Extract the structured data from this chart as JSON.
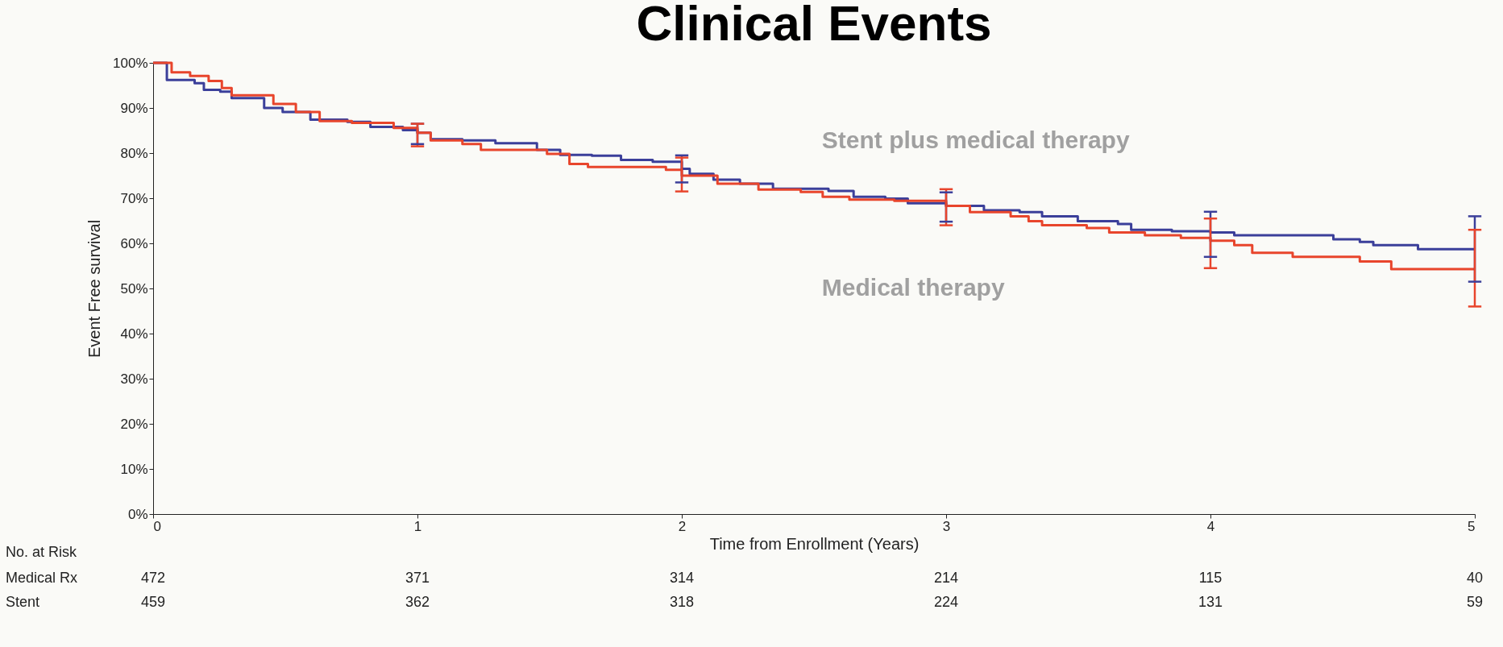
{
  "chart_data": {
    "type": "step",
    "title": "Clinical Events",
    "xlabel": "Time from Enrollment (Years)",
    "ylabel": "Event Free survival",
    "xlim": [
      0,
      5
    ],
    "xticks": [
      0,
      1,
      2,
      3,
      4,
      5
    ],
    "ylim": [
      0,
      100
    ],
    "yticks": [
      {
        "value": 0,
        "label": "0%"
      },
      {
        "value": 10,
        "label": "10%"
      },
      {
        "value": 20,
        "label": "20%"
      },
      {
        "value": 30,
        "label": "30%"
      },
      {
        "value": 40,
        "label": "40%"
      },
      {
        "value": 50,
        "label": "50%"
      },
      {
        "value": 60,
        "label": "60%"
      },
      {
        "value": 70,
        "label": "70%"
      },
      {
        "value": 80,
        "label": "80%"
      },
      {
        "value": 90,
        "label": "90%"
      },
      {
        "value": 100,
        "label": "100%"
      }
    ],
    "grid": false,
    "marker": "none",
    "series": [
      {
        "name": "Stent plus medical therapy",
        "color": "#3b3f9a",
        "x": [
          0,
          0.04,
          0.052,
          0.157,
          0.192,
          0.254,
          0.297,
          0.42,
          0.49,
          0.595,
          0.735,
          0.822,
          0.945,
          1.0,
          1.05,
          1.17,
          1.295,
          1.452,
          1.54,
          1.66,
          1.77,
          1.89,
          2.0,
          2.03,
          2.12,
          2.22,
          2.345,
          2.555,
          2.65,
          2.77,
          2.855,
          3.0,
          3.143,
          3.278,
          3.363,
          3.498,
          3.65,
          3.7,
          3.854,
          4.0,
          4.09,
          4.465,
          4.565,
          4.616,
          4.785,
          5.0
        ],
        "values": [
          100,
          100,
          96.2,
          95.5,
          94.0,
          93.6,
          92.2,
          90.0,
          89.1,
          87.4,
          86.9,
          85.8,
          85.1,
          84.5,
          83.1,
          82.8,
          82.2,
          80.7,
          79.6,
          79.4,
          78.5,
          78.1,
          76.5,
          75.4,
          74.1,
          73.2,
          72.1,
          71.6,
          70.3,
          69.9,
          68.9,
          68.3,
          67.3,
          66.9,
          66.0,
          64.9,
          64.3,
          63.0,
          62.7,
          62.4,
          61.8,
          60.9,
          60.3,
          59.6,
          58.7,
          58.7
        ],
        "errors": [
          null,
          null,
          null,
          null,
          null,
          null,
          null,
          null,
          null,
          null,
          null,
          null,
          null,
          [
            82,
            86.5
          ],
          null,
          null,
          null,
          null,
          null,
          null,
          null,
          null,
          [
            73.5,
            79.5
          ],
          null,
          null,
          null,
          null,
          null,
          null,
          null,
          null,
          [
            64.8,
            71.3
          ],
          null,
          null,
          null,
          null,
          null,
          null,
          null,
          [
            57,
            67
          ],
          null,
          null,
          null,
          null,
          null,
          [
            51.5,
            66
          ]
        ]
      },
      {
        "name": "Medical therapy",
        "color": "#e8452c",
        "x": [
          0,
          0.05,
          0.07,
          0.14,
          0.21,
          0.26,
          0.297,
          0.455,
          0.54,
          0.63,
          0.752,
          0.91,
          1.0,
          1.05,
          1.17,
          1.24,
          1.49,
          1.575,
          1.645,
          1.94,
          2.0,
          2.135,
          2.29,
          2.45,
          2.533,
          2.634,
          2.804,
          3.0,
          3.09,
          3.244,
          3.312,
          3.363,
          3.532,
          3.617,
          3.752,
          3.888,
          4.0,
          4.09,
          4.158,
          4.311,
          4.565,
          4.684,
          5.0
        ],
        "values": [
          100,
          100,
          97.9,
          97.1,
          96.0,
          94.4,
          92.8,
          90.9,
          89.1,
          87.1,
          86.7,
          85.6,
          84.5,
          82.8,
          82.0,
          80.7,
          79.8,
          77.6,
          76.9,
          76.3,
          75.0,
          73.2,
          71.9,
          71.4,
          70.3,
          69.7,
          69.4,
          68.3,
          66.9,
          66.0,
          64.9,
          64.0,
          63.4,
          62.4,
          61.8,
          61.2,
          60.6,
          59.6,
          57.9,
          57.0,
          56.0,
          54.3,
          54.3
        ],
        "errors": [
          null,
          null,
          null,
          null,
          null,
          null,
          null,
          null,
          null,
          null,
          null,
          null,
          [
            81.5,
            86.5
          ],
          null,
          null,
          null,
          null,
          null,
          null,
          null,
          [
            71.5,
            79
          ],
          null,
          null,
          null,
          null,
          null,
          null,
          [
            64,
            72
          ],
          null,
          null,
          null,
          null,
          null,
          null,
          null,
          null,
          [
            54.5,
            65.5
          ],
          null,
          null,
          null,
          null,
          null,
          [
            46,
            63
          ]
        ]
      }
    ],
    "annotations": [
      "No. at Risk",
      "Medical Rx",
      "472",
      "371",
      "314",
      "214",
      "115",
      "40",
      "Stent",
      "459",
      "362",
      "318",
      "224",
      "131",
      "59"
    ]
  }
}
